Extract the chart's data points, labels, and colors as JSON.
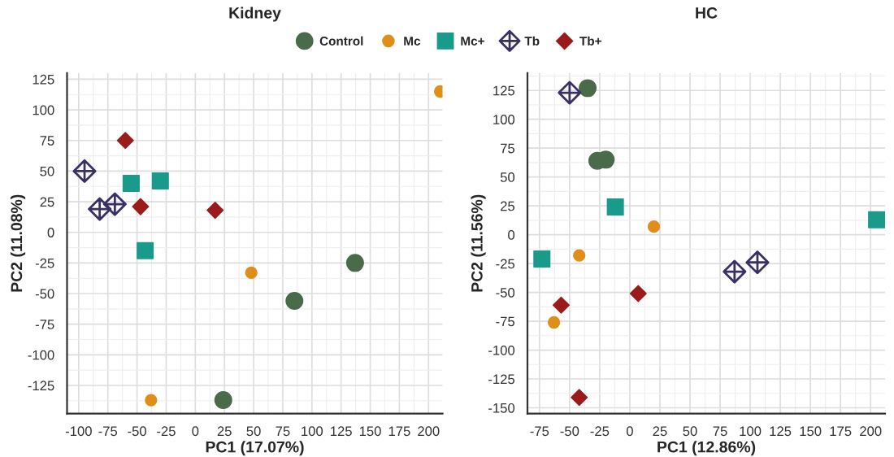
{
  "chart_data": [
    {
      "type": "scatter",
      "title": "Kidney",
      "xlabel": "PC1 (17.07%)",
      "ylabel": "PC2 (11.08%)",
      "xlim": [
        -110,
        212
      ],
      "ylim": [
        -148,
        130
      ],
      "xticks": [
        -100,
        -75,
        -50,
        -25,
        0,
        25,
        50,
        75,
        100,
        125,
        150,
        175,
        200
      ],
      "yticks": [
        -125,
        -100,
        -75,
        -50,
        -25,
        0,
        25,
        50,
        75,
        100,
        125
      ],
      "grid": true,
      "legend": "top",
      "series": [
        {
          "name": "Control",
          "color": "#4a6b4a",
          "marker": "circle",
          "x": [
            137,
            85,
            24
          ],
          "values": [
            -25,
            -56,
            -137
          ]
        },
        {
          "name": "Mc",
          "color": "#e08e1a",
          "marker": "circle",
          "x": [
            210,
            48,
            -38
          ],
          "values": [
            115,
            -33,
            -137
          ]
        },
        {
          "name": "Mc+",
          "color": "#1a9a8a",
          "marker": "square",
          "x": [
            -55,
            -30,
            -43
          ],
          "values": [
            40,
            42,
            -15
          ]
        },
        {
          "name": "Tb",
          "color": "#3b3066",
          "marker": "cross",
          "x": [
            -95,
            -82,
            -69
          ],
          "values": [
            50,
            19,
            23
          ]
        },
        {
          "name": "Tb+",
          "color": "#9b1b1b",
          "marker": "diamond",
          "x": [
            -60,
            -47,
            17
          ],
          "values": [
            75,
            21,
            18
          ]
        }
      ]
    },
    {
      "type": "scatter",
      "title": "HC",
      "xlabel": "PC1 (12.86%)",
      "ylabel": "PC2 (11.56%)",
      "xlim": [
        -85,
        212
      ],
      "ylim": [
        -155,
        140
      ],
      "xticks": [
        -75,
        -50,
        -25,
        0,
        25,
        50,
        75,
        100,
        125,
        150,
        175,
        200
      ],
      "yticks": [
        -150,
        -125,
        -100,
        -75,
        -50,
        -25,
        0,
        25,
        50,
        75,
        100,
        125
      ],
      "grid": true,
      "legend": false,
      "series": [
        {
          "color": "#4a6b4a",
          "marker": "circle",
          "x": [
            -35,
            -27,
            -20
          ],
          "values": [
            127,
            64,
            65
          ]
        },
        {
          "color": "#e08e1a",
          "marker": "circle",
          "x": [
            20,
            -42,
            -63
          ],
          "values": [
            7,
            -18,
            -76
          ]
        },
        {
          "color": "#1a9a8a",
          "marker": "square",
          "x": [
            -12,
            -73,
            205
          ],
          "values": [
            24,
            -21,
            13
          ]
        },
        {
          "color": "#3b3066",
          "marker": "cross",
          "x": [
            -50,
            87,
            106
          ],
          "values": [
            123,
            -32,
            -24
          ]
        },
        {
          "color": "#9b1b1b",
          "marker": "diamond",
          "x": [
            -57,
            7,
            -42
          ],
          "values": [
            -61,
            -51,
            -141
          ]
        }
      ]
    }
  ]
}
